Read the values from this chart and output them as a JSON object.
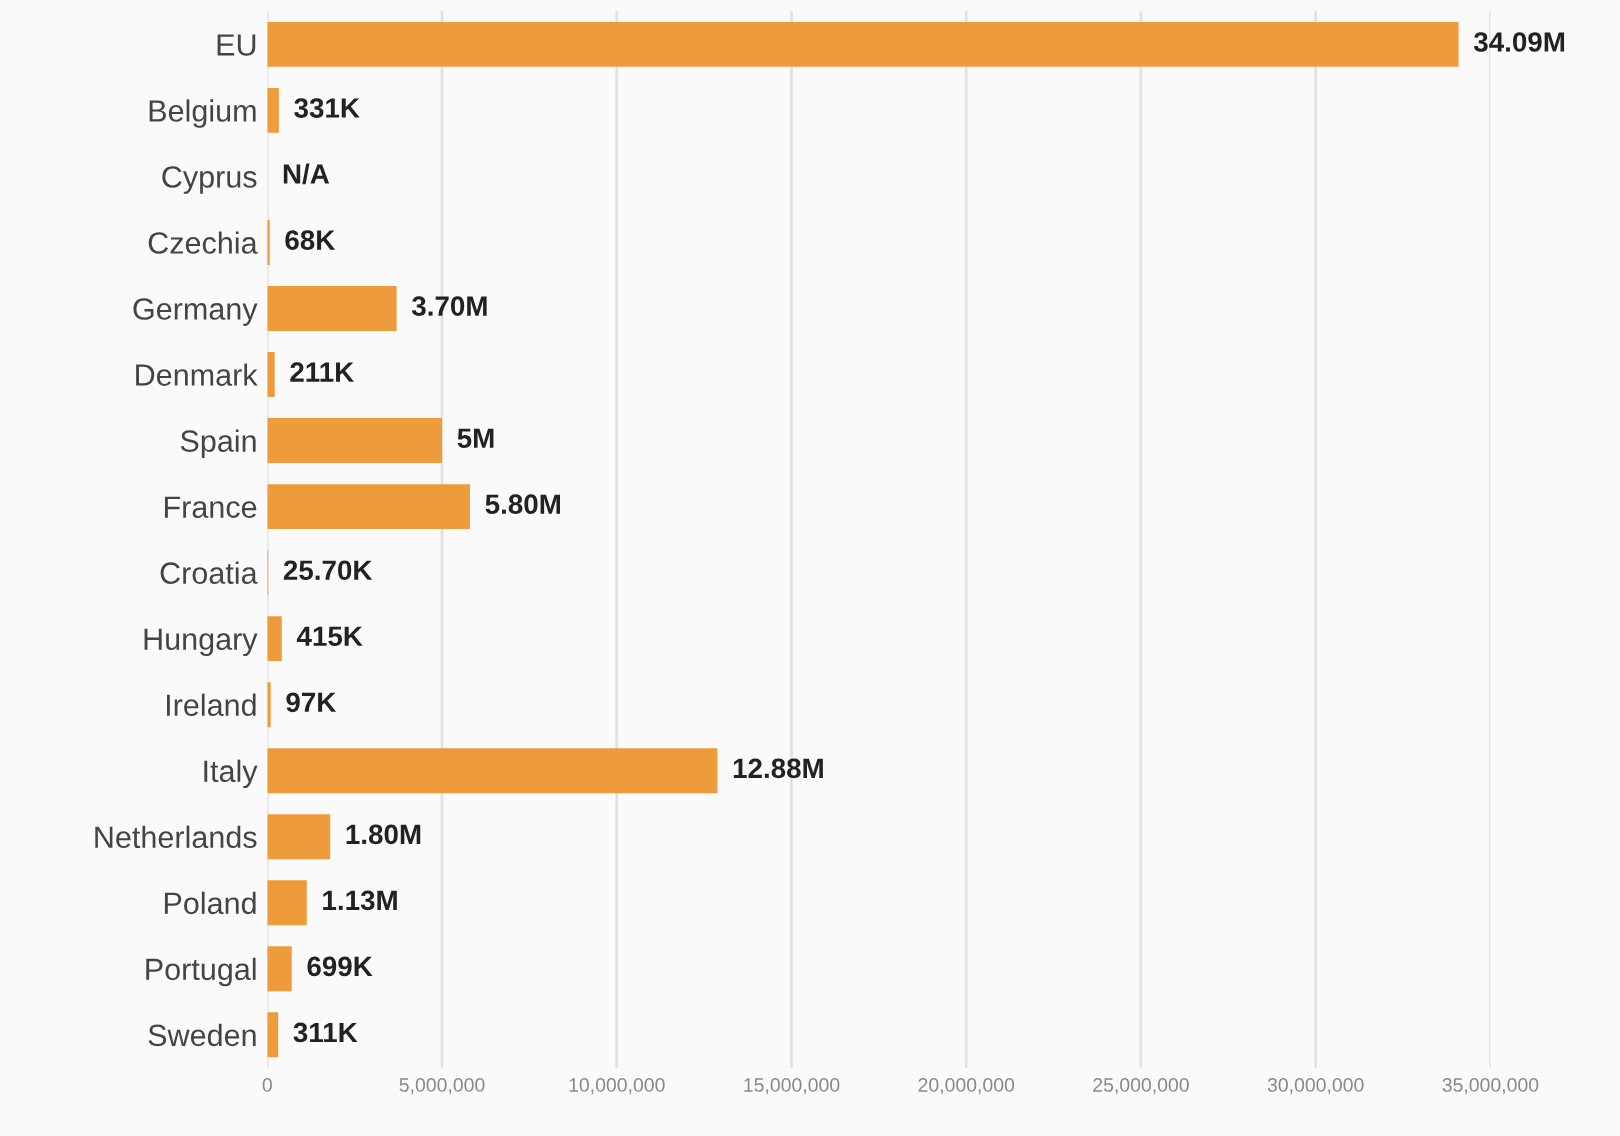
{
  "chart_data": {
    "type": "bar",
    "orientation": "horizontal",
    "categories": [
      "EU",
      "Belgium",
      "Cyprus",
      "Czechia",
      "Germany",
      "Denmark",
      "Spain",
      "France",
      "Croatia",
      "Hungary",
      "Ireland",
      "Italy",
      "Netherlands",
      "Poland",
      "Portugal",
      "Sweden"
    ],
    "values": [
      34090000,
      331000,
      null,
      68000,
      3700000,
      211000,
      5000000,
      5800000,
      25700,
      415000,
      97000,
      12880000,
      1800000,
      1130000,
      699000,
      311000
    ],
    "value_labels": [
      "34.09M",
      "331K",
      "N/A",
      "68K",
      "3.70M",
      "211K",
      "5M",
      "5.80M",
      "25.70K",
      "415K",
      "97K",
      "12.88M",
      "1.80M",
      "1.13M",
      "699K",
      "311K"
    ],
    "color": "#ee9b3b",
    "xlim": [
      0,
      35000000
    ],
    "xticks": [
      0,
      {
        "value": 5000000,
        "label": "5,000,000"
      },
      {
        "value": 10000000,
        "label": "10,000,000"
      },
      {
        "value": 15000000,
        "label": "15,000,000"
      },
      {
        "value": 20000000,
        "label": "20,000,000"
      },
      {
        "value": 25000000,
        "label": "25,000,000"
      },
      {
        "value": 30000000,
        "label": "30,000,000"
      },
      {
        "value": 35000000,
        "label": "35,000,000"
      }
    ],
    "grid": "x"
  }
}
